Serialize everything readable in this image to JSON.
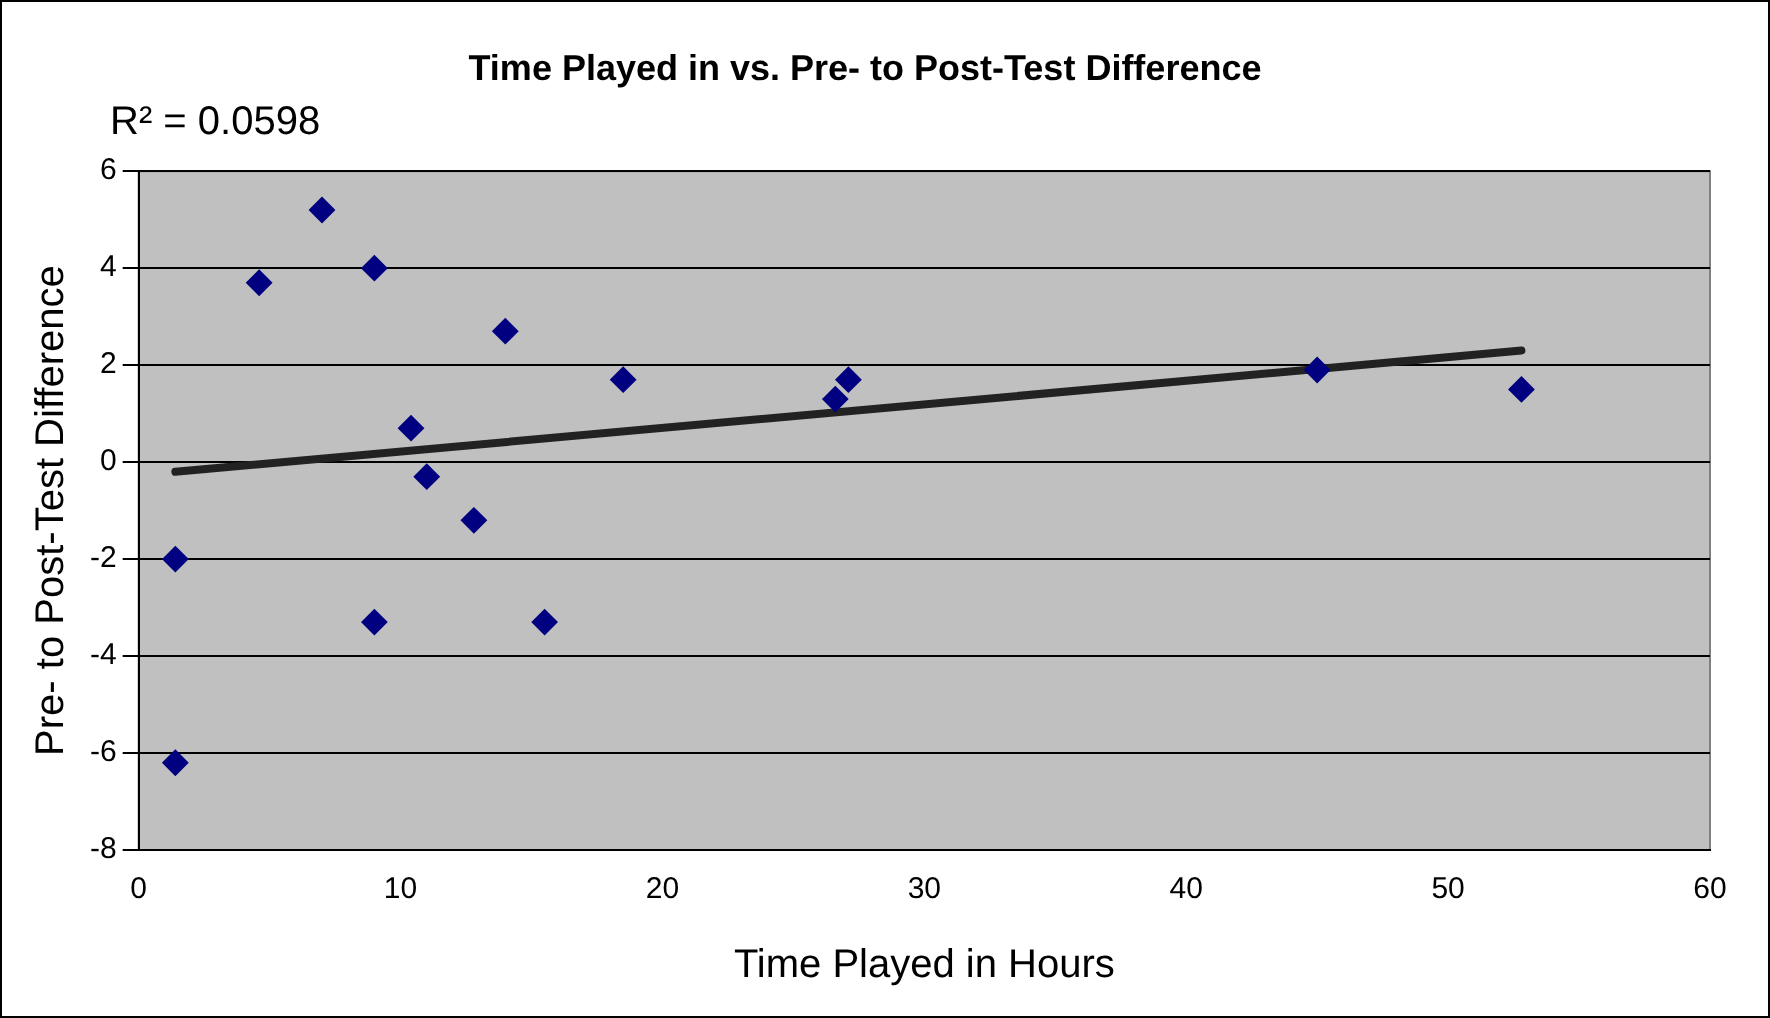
{
  "chart_data": {
    "type": "scatter",
    "title": "Time Played in vs. Pre- to Post-Test Difference",
    "xlabel": "Time Played in Hours",
    "ylabel": "Pre- to Post-Test Difference",
    "annotations": [
      "R² = 0.0598"
    ],
    "series": [
      {
        "color": "#000080",
        "marker": "diamond",
        "x": [
          1.4,
          1.4,
          4.6,
          7.0,
          9.0,
          9.0,
          10.4,
          11.0,
          12.8,
          14.0,
          15.5,
          18.5,
          26.6,
          27.1,
          45.0,
          52.8
        ],
        "values": [
          -2.0,
          -6.2,
          3.7,
          5.2,
          4.0,
          -3.3,
          0.7,
          -0.3,
          -1.2,
          2.7,
          -3.3,
          1.7,
          1.3,
          1.7,
          1.9,
          1.5
        ]
      },
      {
        "type": "line",
        "color": "#222222",
        "marker": "none",
        "line_style": "solid",
        "x": [
          1.4,
          52.8
        ],
        "values": [
          -0.2,
          2.3
        ]
      }
    ],
    "xlim": [
      0,
      60
    ],
    "xticks": [
      0,
      10,
      20,
      30,
      40,
      50,
      60
    ],
    "ylim": [
      -8,
      6
    ],
    "yticks": [
      -8,
      -6,
      -4,
      -2,
      0,
      2,
      4,
      6
    ],
    "grid": "y",
    "legend": false
  }
}
